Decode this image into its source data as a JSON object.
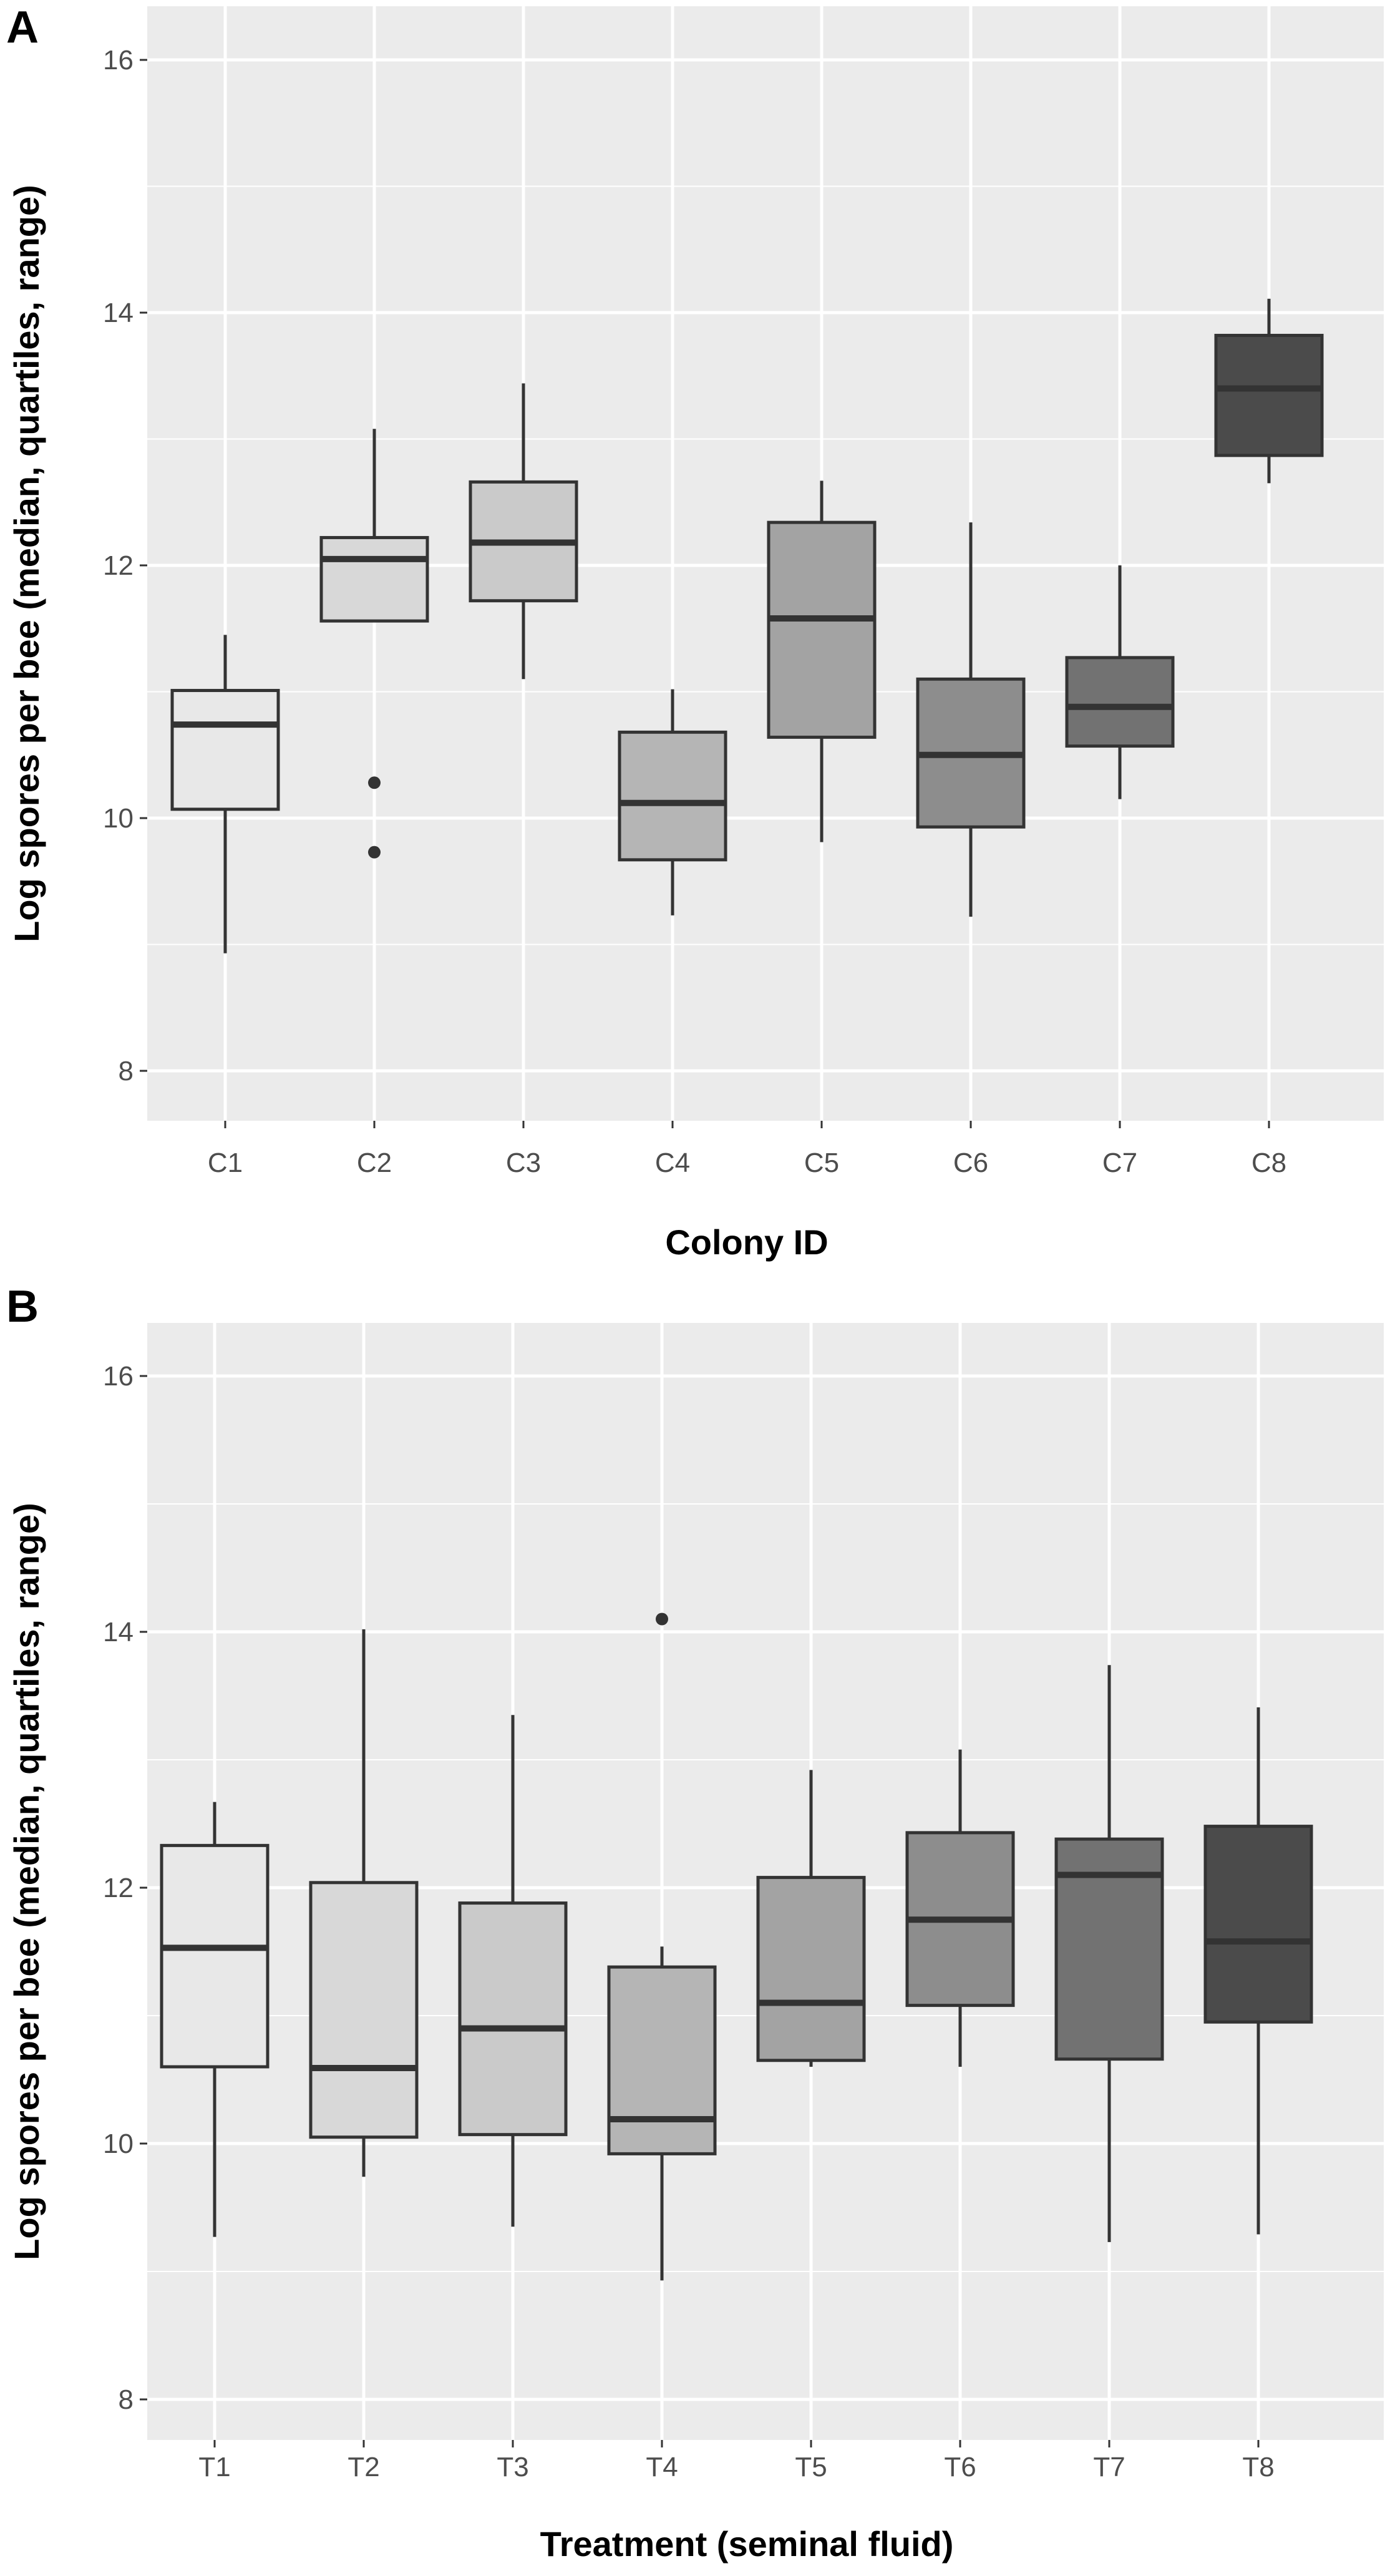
{
  "chart_data": [
    {
      "panel_label": "A",
      "type": "boxplot",
      "xlabel": "Colony ID",
      "ylabel": "Log spores per bee (median, quartiles, range)",
      "ylim": [
        7.6,
        16.4
      ],
      "yticks": [
        "8",
        "10",
        "12",
        "14",
        "16"
      ],
      "grid": true,
      "categories": [
        "C1",
        "C2",
        "C3",
        "C4",
        "C5",
        "C6",
        "C7",
        "C8"
      ],
      "boxes": [
        {
          "category": "C1",
          "min": 8.93,
          "q1": 10.07,
          "median": 10.74,
          "q3": 11.01,
          "max": 11.45,
          "outliers": [],
          "fill": "#e8e8e8"
        },
        {
          "category": "C2",
          "min": 11.56,
          "q1": 11.56,
          "median": 12.05,
          "q3": 12.22,
          "max": 13.08,
          "outliers": [
            10.28,
            9.73
          ],
          "fill": "#d8d8d8"
        },
        {
          "category": "C3",
          "min": 11.1,
          "q1": 11.72,
          "median": 12.18,
          "q3": 12.66,
          "max": 13.44,
          "outliers": [],
          "fill": "#cacaca"
        },
        {
          "category": "C4",
          "min": 9.23,
          "q1": 9.67,
          "median": 10.12,
          "q3": 10.68,
          "max": 11.02,
          "outliers": [],
          "fill": "#b5b5b5"
        },
        {
          "category": "C5",
          "min": 9.81,
          "q1": 10.64,
          "median": 11.58,
          "q3": 12.34,
          "max": 12.67,
          "outliers": [],
          "fill": "#a3a3a3"
        },
        {
          "category": "C6",
          "min": 9.22,
          "q1": 9.93,
          "median": 10.5,
          "q3": 11.1,
          "max": 12.34,
          "outliers": [],
          "fill": "#8d8d8d"
        },
        {
          "category": "C7",
          "min": 10.15,
          "q1": 10.57,
          "median": 10.88,
          "q3": 11.27,
          "max": 12.0,
          "outliers": [],
          "fill": "#727272"
        },
        {
          "category": "C8",
          "min": 12.65,
          "q1": 12.87,
          "median": 13.4,
          "q3": 13.82,
          "max": 14.11,
          "outliers": [],
          "fill": "#4b4b4b"
        }
      ]
    },
    {
      "panel_label": "B",
      "type": "boxplot",
      "xlabel": "Treatment (seminal fluid)",
      "ylabel": "Log spores per bee (median, quartiles, range)",
      "ylim": [
        7.6,
        16.4
      ],
      "yticks": [
        "8",
        "10",
        "12",
        "14",
        "16"
      ],
      "grid": true,
      "categories": [
        "T1",
        "T2",
        "T3",
        "T4",
        "T5",
        "T6",
        "T7",
        "T8"
      ],
      "boxes": [
        {
          "category": "T1",
          "min": 9.27,
          "q1": 10.6,
          "median": 11.53,
          "q3": 12.33,
          "max": 12.67,
          "outliers": [],
          "fill": "#e8e8e8"
        },
        {
          "category": "T2",
          "min": 9.74,
          "q1": 10.05,
          "median": 10.59,
          "q3": 12.04,
          "max": 14.02,
          "outliers": [],
          "fill": "#d8d8d8"
        },
        {
          "category": "T3",
          "min": 9.35,
          "q1": 10.07,
          "median": 10.9,
          "q3": 11.88,
          "max": 13.35,
          "outliers": [],
          "fill": "#cacaca"
        },
        {
          "category": "T4",
          "min": 8.93,
          "q1": 9.92,
          "median": 10.19,
          "q3": 11.38,
          "max": 11.54,
          "outliers": [
            14.1
          ],
          "fill": "#b5b5b5"
        },
        {
          "category": "T5",
          "min": 10.6,
          "q1": 10.65,
          "median": 11.1,
          "q3": 12.08,
          "max": 12.92,
          "outliers": [],
          "fill": "#a3a3a3"
        },
        {
          "category": "T6",
          "min": 10.6,
          "q1": 11.08,
          "median": 11.75,
          "q3": 12.43,
          "max": 13.08,
          "outliers": [],
          "fill": "#8d8d8d"
        },
        {
          "category": "T7",
          "min": 9.23,
          "q1": 10.66,
          "median": 12.1,
          "q3": 12.38,
          "max": 13.74,
          "outliers": [],
          "fill": "#727272"
        },
        {
          "category": "T8",
          "min": 9.29,
          "q1": 10.95,
          "median": 11.58,
          "q3": 12.48,
          "max": 13.41,
          "outliers": [],
          "fill": "#4b4b4b"
        }
      ]
    }
  ]
}
